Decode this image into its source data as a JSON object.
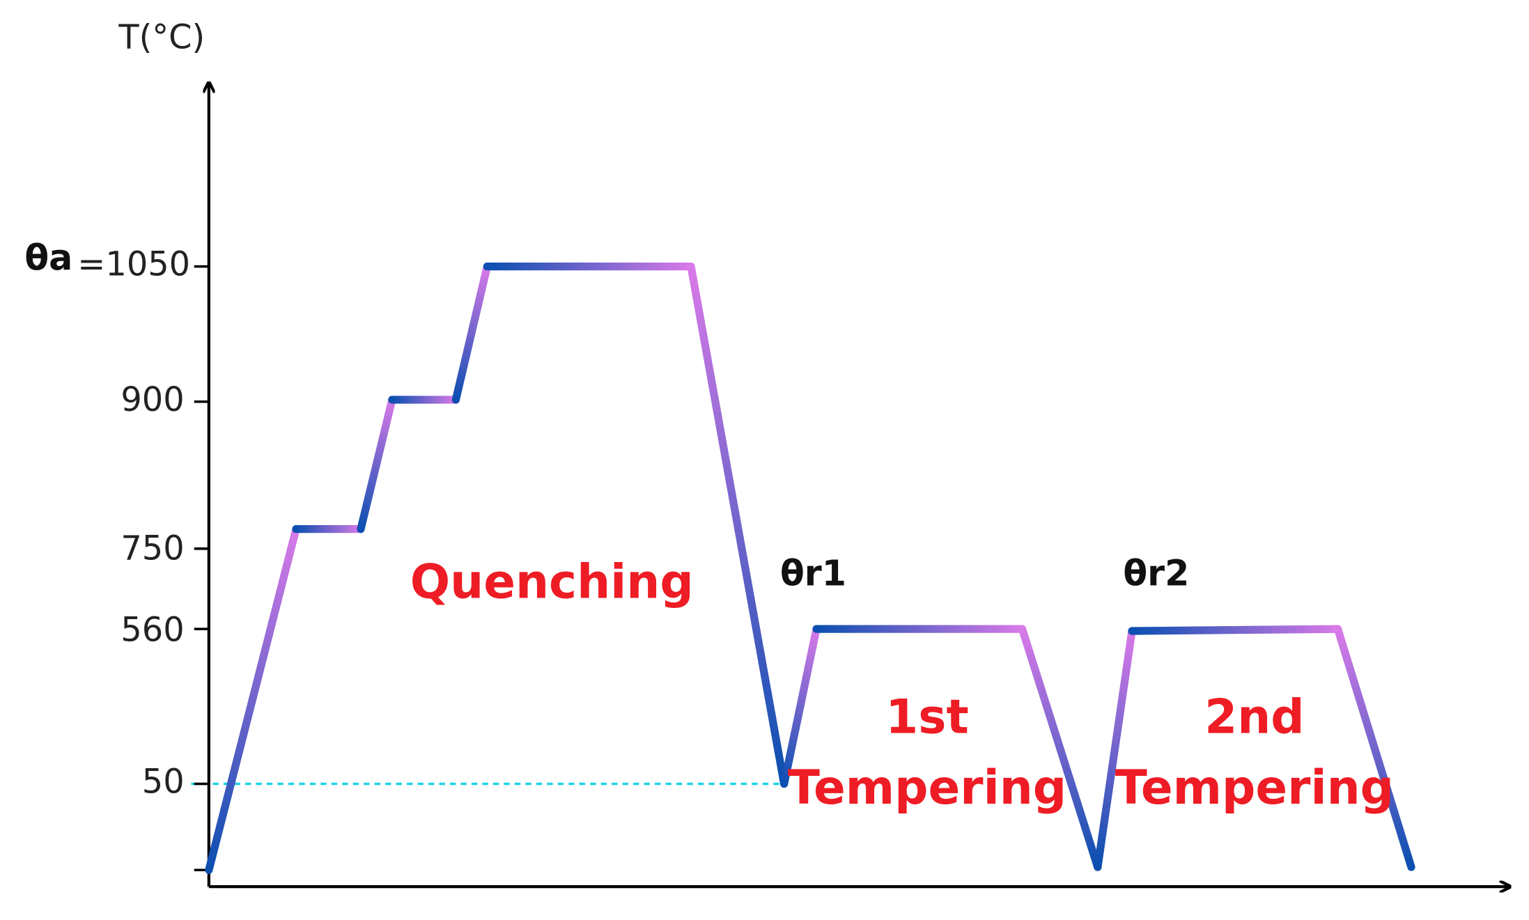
{
  "axis": {
    "label": "T(°C)"
  },
  "ticks": {
    "symbol": "θa",
    "labels": [
      "=1050",
      "900",
      "750",
      "560",
      "50"
    ]
  },
  "annotations": {
    "quenching": "Quenching",
    "theta_r1": "θr1",
    "theta_r2": "θr2",
    "first_tempering": [
      "1st",
      "Tempering"
    ],
    "second_tempering": [
      "2nd",
      "Tempering"
    ]
  }
}
